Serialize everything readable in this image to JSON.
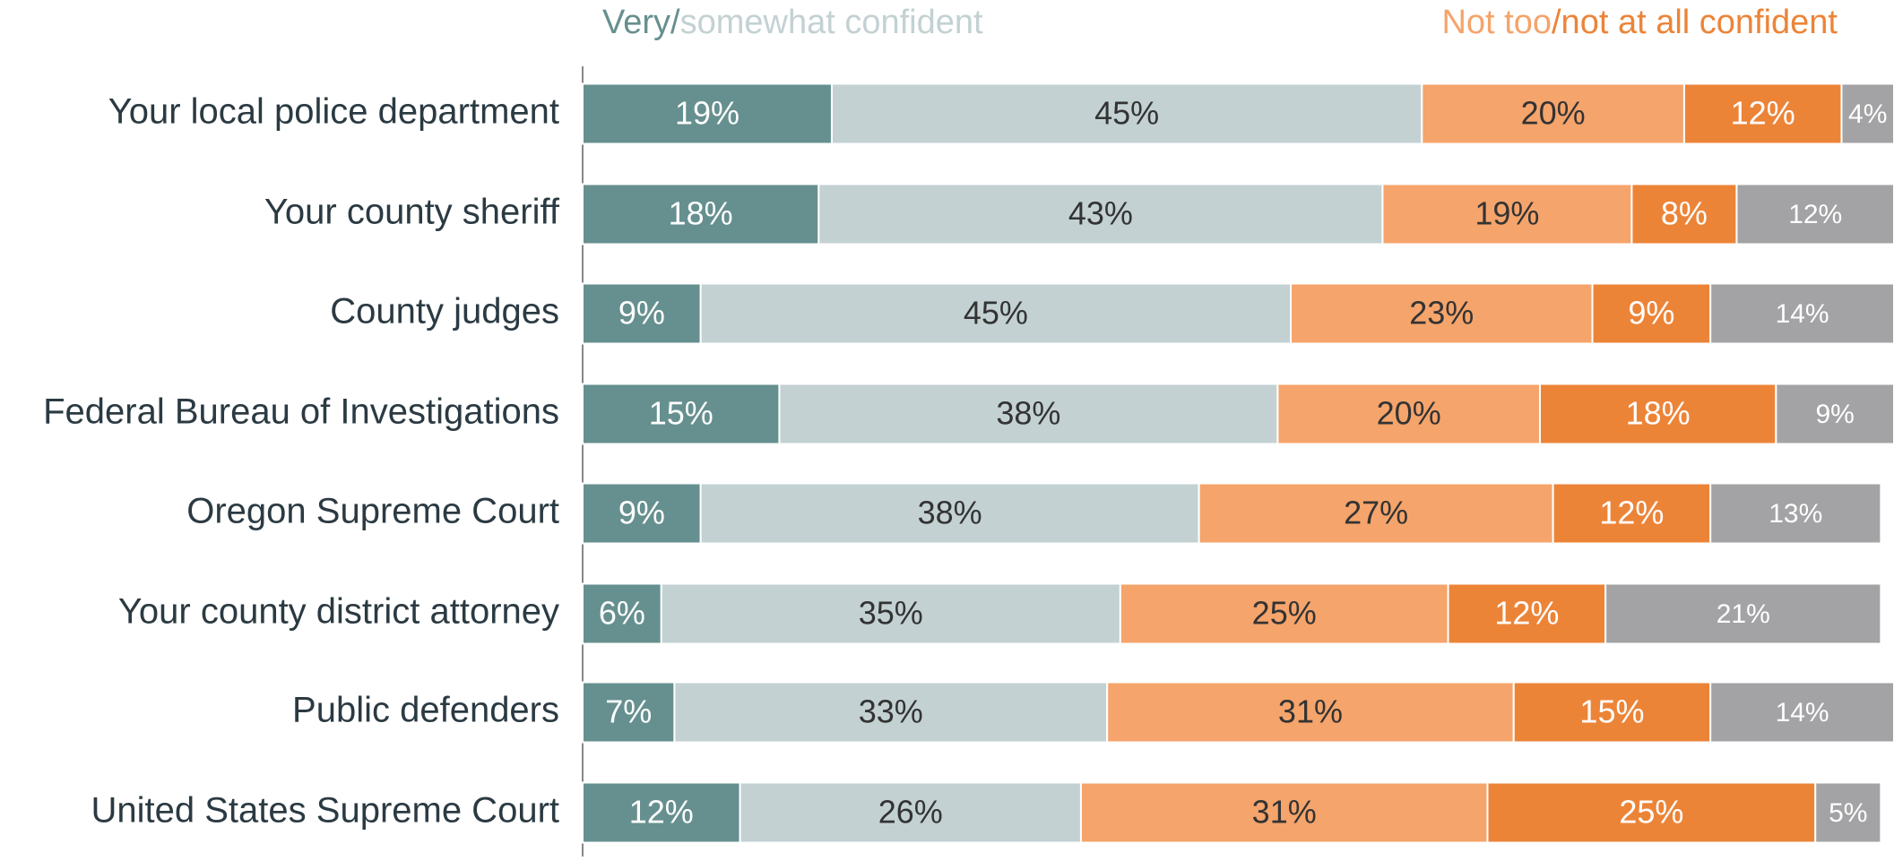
{
  "chart_data": {
    "type": "stacked-bar-horizontal",
    "categories": [
      "Your local police department",
      "Your county sheriff",
      "County judges",
      "Federal Bureau of Investigations",
      "Oregon Supreme Court",
      "Your county district attorney",
      "Public defenders",
      "United States Supreme Court"
    ],
    "xlim": [
      0,
      100
    ],
    "series": [
      {
        "name": "Very/",
        "color": "#66908f",
        "values": [
          19,
          18,
          9,
          15,
          9,
          6,
          7,
          12
        ],
        "value_labels": [
          "19%",
          "18%",
          "9%",
          "15%",
          "9%",
          "6%",
          "7%",
          "12%"
        ]
      },
      {
        "name": "somewhat confident",
        "color": "#c3d1d3",
        "values": [
          45,
          43,
          45,
          38,
          38,
          35,
          33,
          26
        ],
        "value_labels": [
          "45%",
          "43%",
          "45%",
          "38%",
          "38%",
          "35%",
          "33%",
          "26%"
        ]
      },
      {
        "name": "Not too",
        "color": "#f5a46b",
        "values": [
          20,
          19,
          23,
          20,
          27,
          25,
          31,
          31
        ],
        "value_labels": [
          "20%",
          "19%",
          "23%",
          "20%",
          "27%",
          "25%",
          "31%",
          "31%"
        ]
      },
      {
        "name": "/not at all confident",
        "color": "#ec8438",
        "values": [
          12,
          8,
          9,
          18,
          12,
          12,
          15,
          25
        ],
        "value_labels": [
          "12%",
          "8%",
          "9%",
          "18%",
          "12%",
          "12%",
          "15%",
          "25%"
        ]
      },
      {
        "color": "#a3a3a5",
        "values": [
          4,
          12,
          14,
          9,
          13,
          21,
          14,
          5
        ],
        "value_labels": [
          "4%",
          "12%",
          "14%",
          "9%",
          "13%",
          "21%",
          "14%",
          "5%"
        ]
      }
    ]
  }
}
